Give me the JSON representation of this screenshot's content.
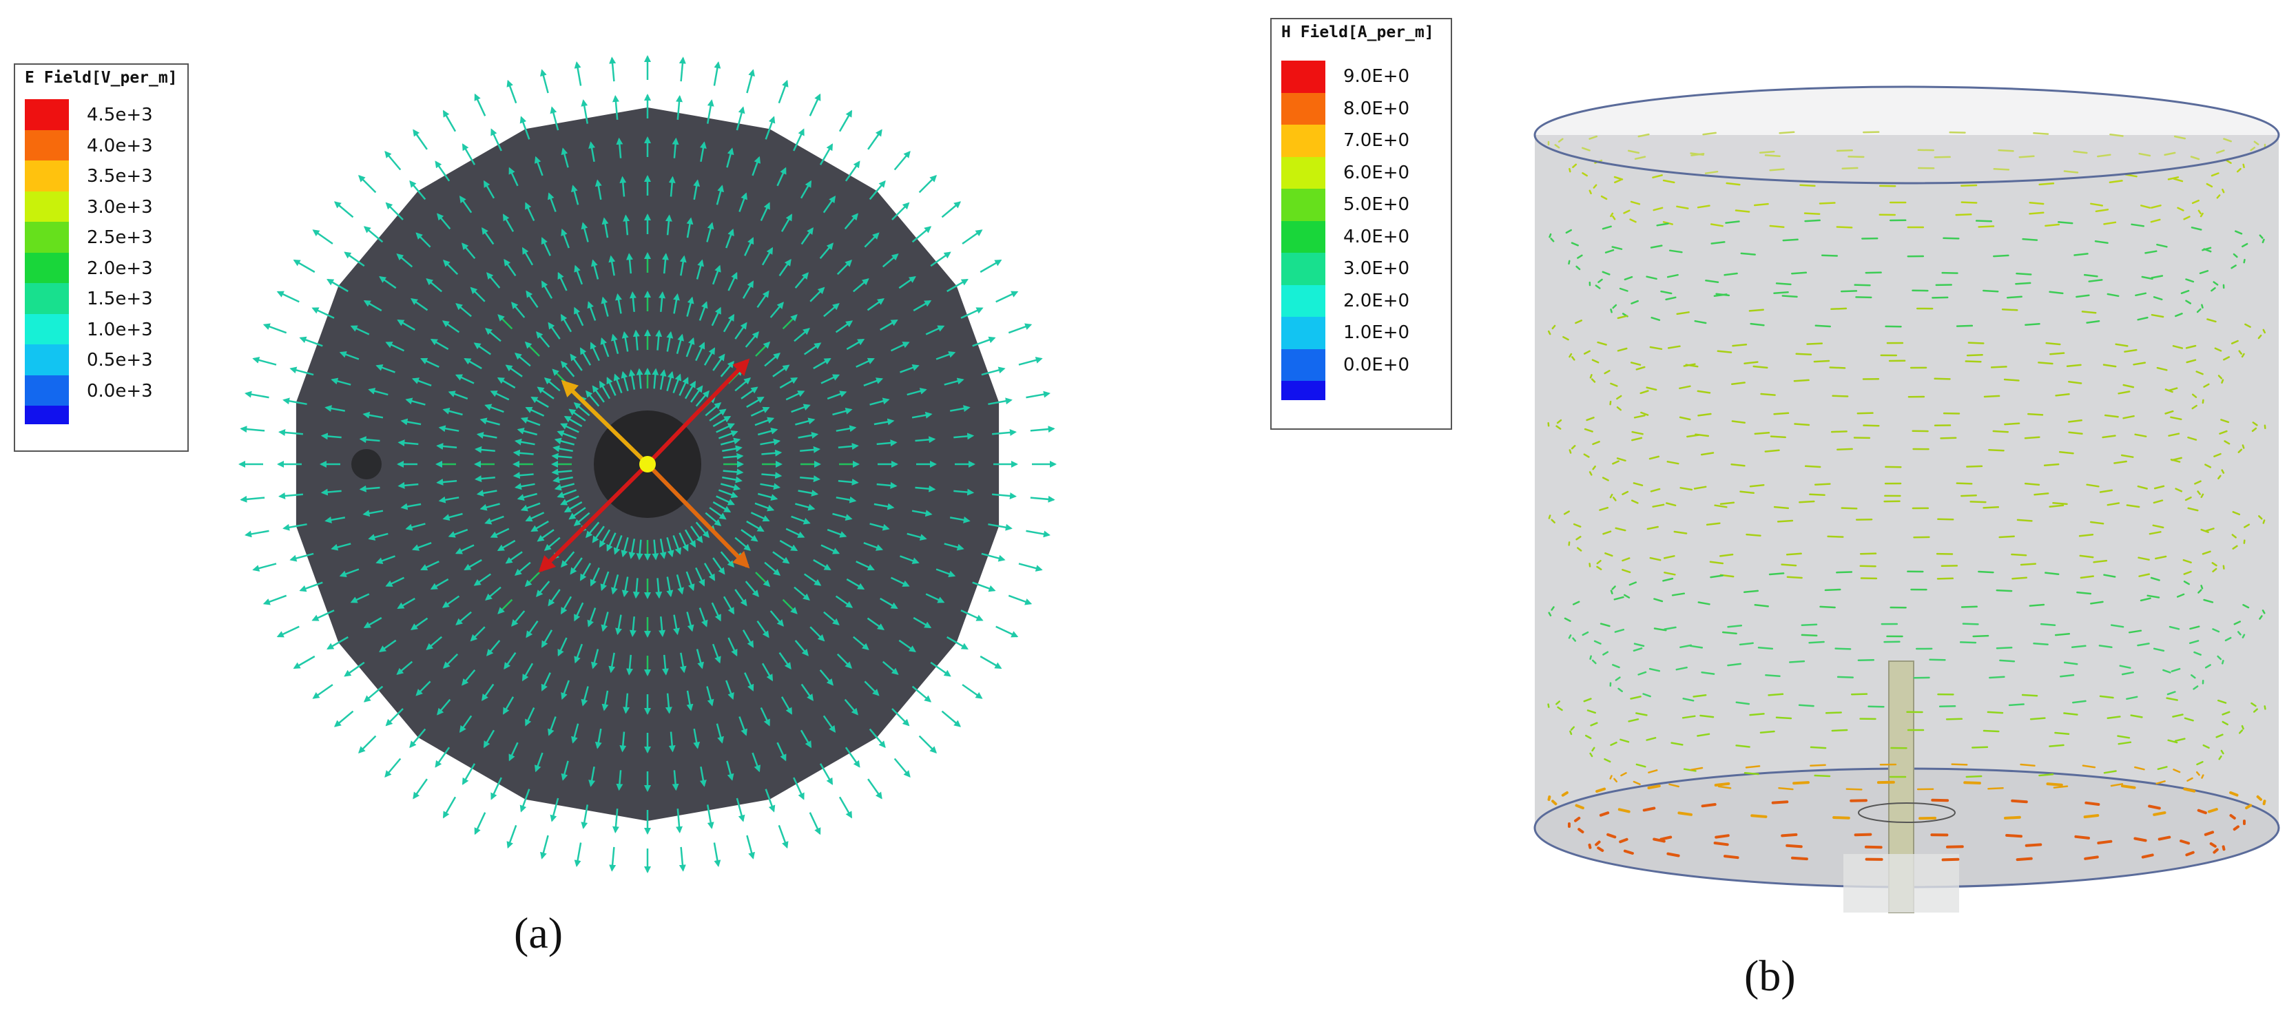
{
  "panel_a": {
    "legend": {
      "title": "E Field[V_per_m]",
      "levels": [
        {
          "label": "4.5e+3",
          "color": "#ee1111"
        },
        {
          "label": "4.0e+3",
          "color": "#f76a0c"
        },
        {
          "label": "3.5e+3",
          "color": "#ffc20e"
        },
        {
          "label": "3.0e+3",
          "color": "#c9f20a"
        },
        {
          "label": "2.5e+3",
          "color": "#66e01c"
        },
        {
          "label": "2.0e+3",
          "color": "#19d63a"
        },
        {
          "label": "1.5e+3",
          "color": "#18e08e"
        },
        {
          "label": "1.0e+3",
          "color": "#17f0d6"
        },
        {
          "label": "0.5e+3",
          "color": "#12c4f2"
        },
        {
          "label": "0.0e+3",
          "color": "#1368ef"
        }
      ],
      "bottom_color": "#1111ee"
    },
    "caption": "(a)",
    "colors": {
      "disc": "#45464e",
      "center": "#262628",
      "port": "#2a2b2e",
      "arrow": "#1fcaa8",
      "arrow_inner": "#22c25c",
      "dot": "#f2f20a"
    }
  },
  "panel_b": {
    "legend": {
      "title": "H Field[A_per_m]",
      "levels": [
        {
          "label": "9.0E+0",
          "color": "#ee1111"
        },
        {
          "label": "8.0E+0",
          "color": "#f76a0c"
        },
        {
          "label": "7.0E+0",
          "color": "#ffc20e"
        },
        {
          "label": "6.0E+0",
          "color": "#c9f20a"
        },
        {
          "label": "5.0E+0",
          "color": "#66e01c"
        },
        {
          "label": "4.0E+0",
          "color": "#19d63a"
        },
        {
          "label": "3.0E+0",
          "color": "#18e08e"
        },
        {
          "label": "2.0E+0",
          "color": "#17f0d6"
        },
        {
          "label": "1.0E+0",
          "color": "#12c4f2"
        },
        {
          "label": "0.0E+0",
          "color": "#1368ef"
        }
      ],
      "bottom_color": "#1111ee"
    },
    "caption": "(b)",
    "colors": {
      "cylinder": "#d3d4d6",
      "rim": "#5a6b9a",
      "probe": "#c9caa8"
    }
  }
}
